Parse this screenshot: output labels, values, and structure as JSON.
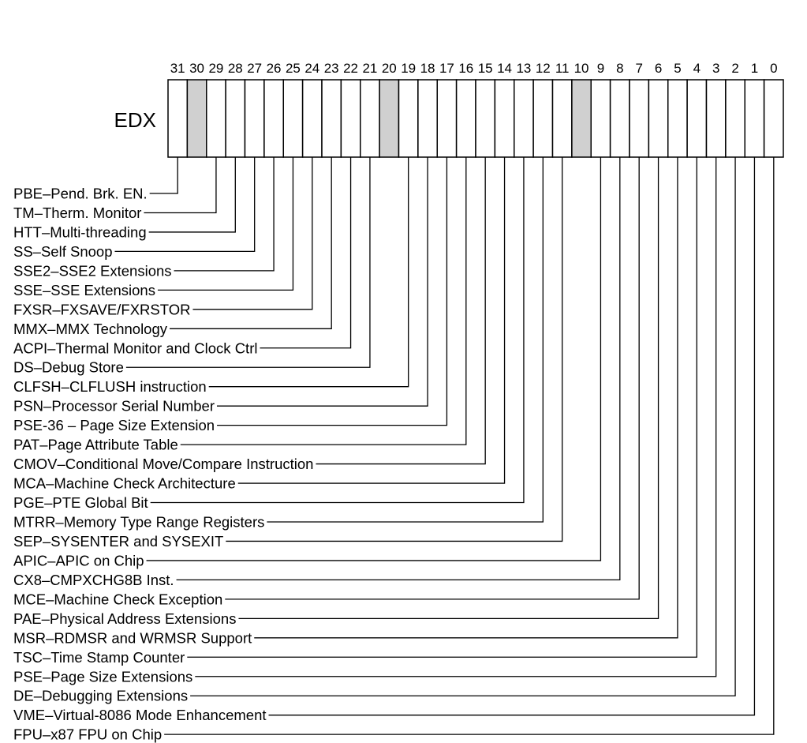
{
  "register_name": "EDX",
  "reserved_bits": [
    30,
    20,
    10
  ],
  "reserved_color": "#d0d0d0",
  "bit_numbers": [
    "31",
    "30",
    "29",
    "28",
    "27",
    "26",
    "25",
    "24",
    "23",
    "22",
    "21",
    "20",
    "19",
    "18",
    "17",
    "16",
    "15",
    "14",
    "13",
    "12",
    "11",
    "10",
    "9",
    "8",
    "7",
    "6",
    "5",
    "4",
    "3",
    "2",
    "1",
    "0"
  ],
  "flags": [
    {
      "bit": 31,
      "label": "PBE–Pend. Brk. EN."
    },
    {
      "bit": 29,
      "label": "TM–Therm. Monitor"
    },
    {
      "bit": 28,
      "label": "HTT–Multi-threading"
    },
    {
      "bit": 27,
      "label": "SS–Self Snoop"
    },
    {
      "bit": 26,
      "label": "SSE2–SSE2 Extensions"
    },
    {
      "bit": 25,
      "label": "SSE–SSE Extensions"
    },
    {
      "bit": 24,
      "label": "FXSR–FXSAVE/FXRSTOR"
    },
    {
      "bit": 23,
      "label": "MMX–MMX Technology"
    },
    {
      "bit": 22,
      "label": "ACPI–Thermal Monitor and Clock Ctrl"
    },
    {
      "bit": 21,
      "label": "DS–Debug Store"
    },
    {
      "bit": 19,
      "label": "CLFSH–CLFLUSH instruction"
    },
    {
      "bit": 18,
      "label": "PSN–Processor Serial Number"
    },
    {
      "bit": 17,
      "label": "PSE-36 – Page Size Extension"
    },
    {
      "bit": 16,
      "label": "PAT–Page Attribute Table"
    },
    {
      "bit": 15,
      "label": "CMOV–Conditional Move/Compare Instruction"
    },
    {
      "bit": 14,
      "label": "MCA–Machine Check Architecture"
    },
    {
      "bit": 13,
      "label": "PGE–PTE Global Bit"
    },
    {
      "bit": 12,
      "label": "MTRR–Memory Type Range Registers"
    },
    {
      "bit": 11,
      "label": "SEP–SYSENTER and SYSEXIT"
    },
    {
      "bit": 9,
      "label": "APIC–APIC on Chip"
    },
    {
      "bit": 8,
      "label": "CX8–CMPXCHG8B Inst."
    },
    {
      "bit": 7,
      "label": "MCE–Machine Check Exception"
    },
    {
      "bit": 6,
      "label": "PAE–Physical Address Extensions"
    },
    {
      "bit": 5,
      "label": "MSR–RDMSR and WRMSR Support"
    },
    {
      "bit": 4,
      "label": "TSC–Time Stamp Counter"
    },
    {
      "bit": 3,
      "label": "PSE–Page Size Extensions"
    },
    {
      "bit": 2,
      "label": "DE–Debugging Extensions"
    },
    {
      "bit": 1,
      "label": "VME–Virtual-8086 Mode Enhancement"
    },
    {
      "bit": 0,
      "label": "FPU–x87 FPU on Chip"
    }
  ]
}
